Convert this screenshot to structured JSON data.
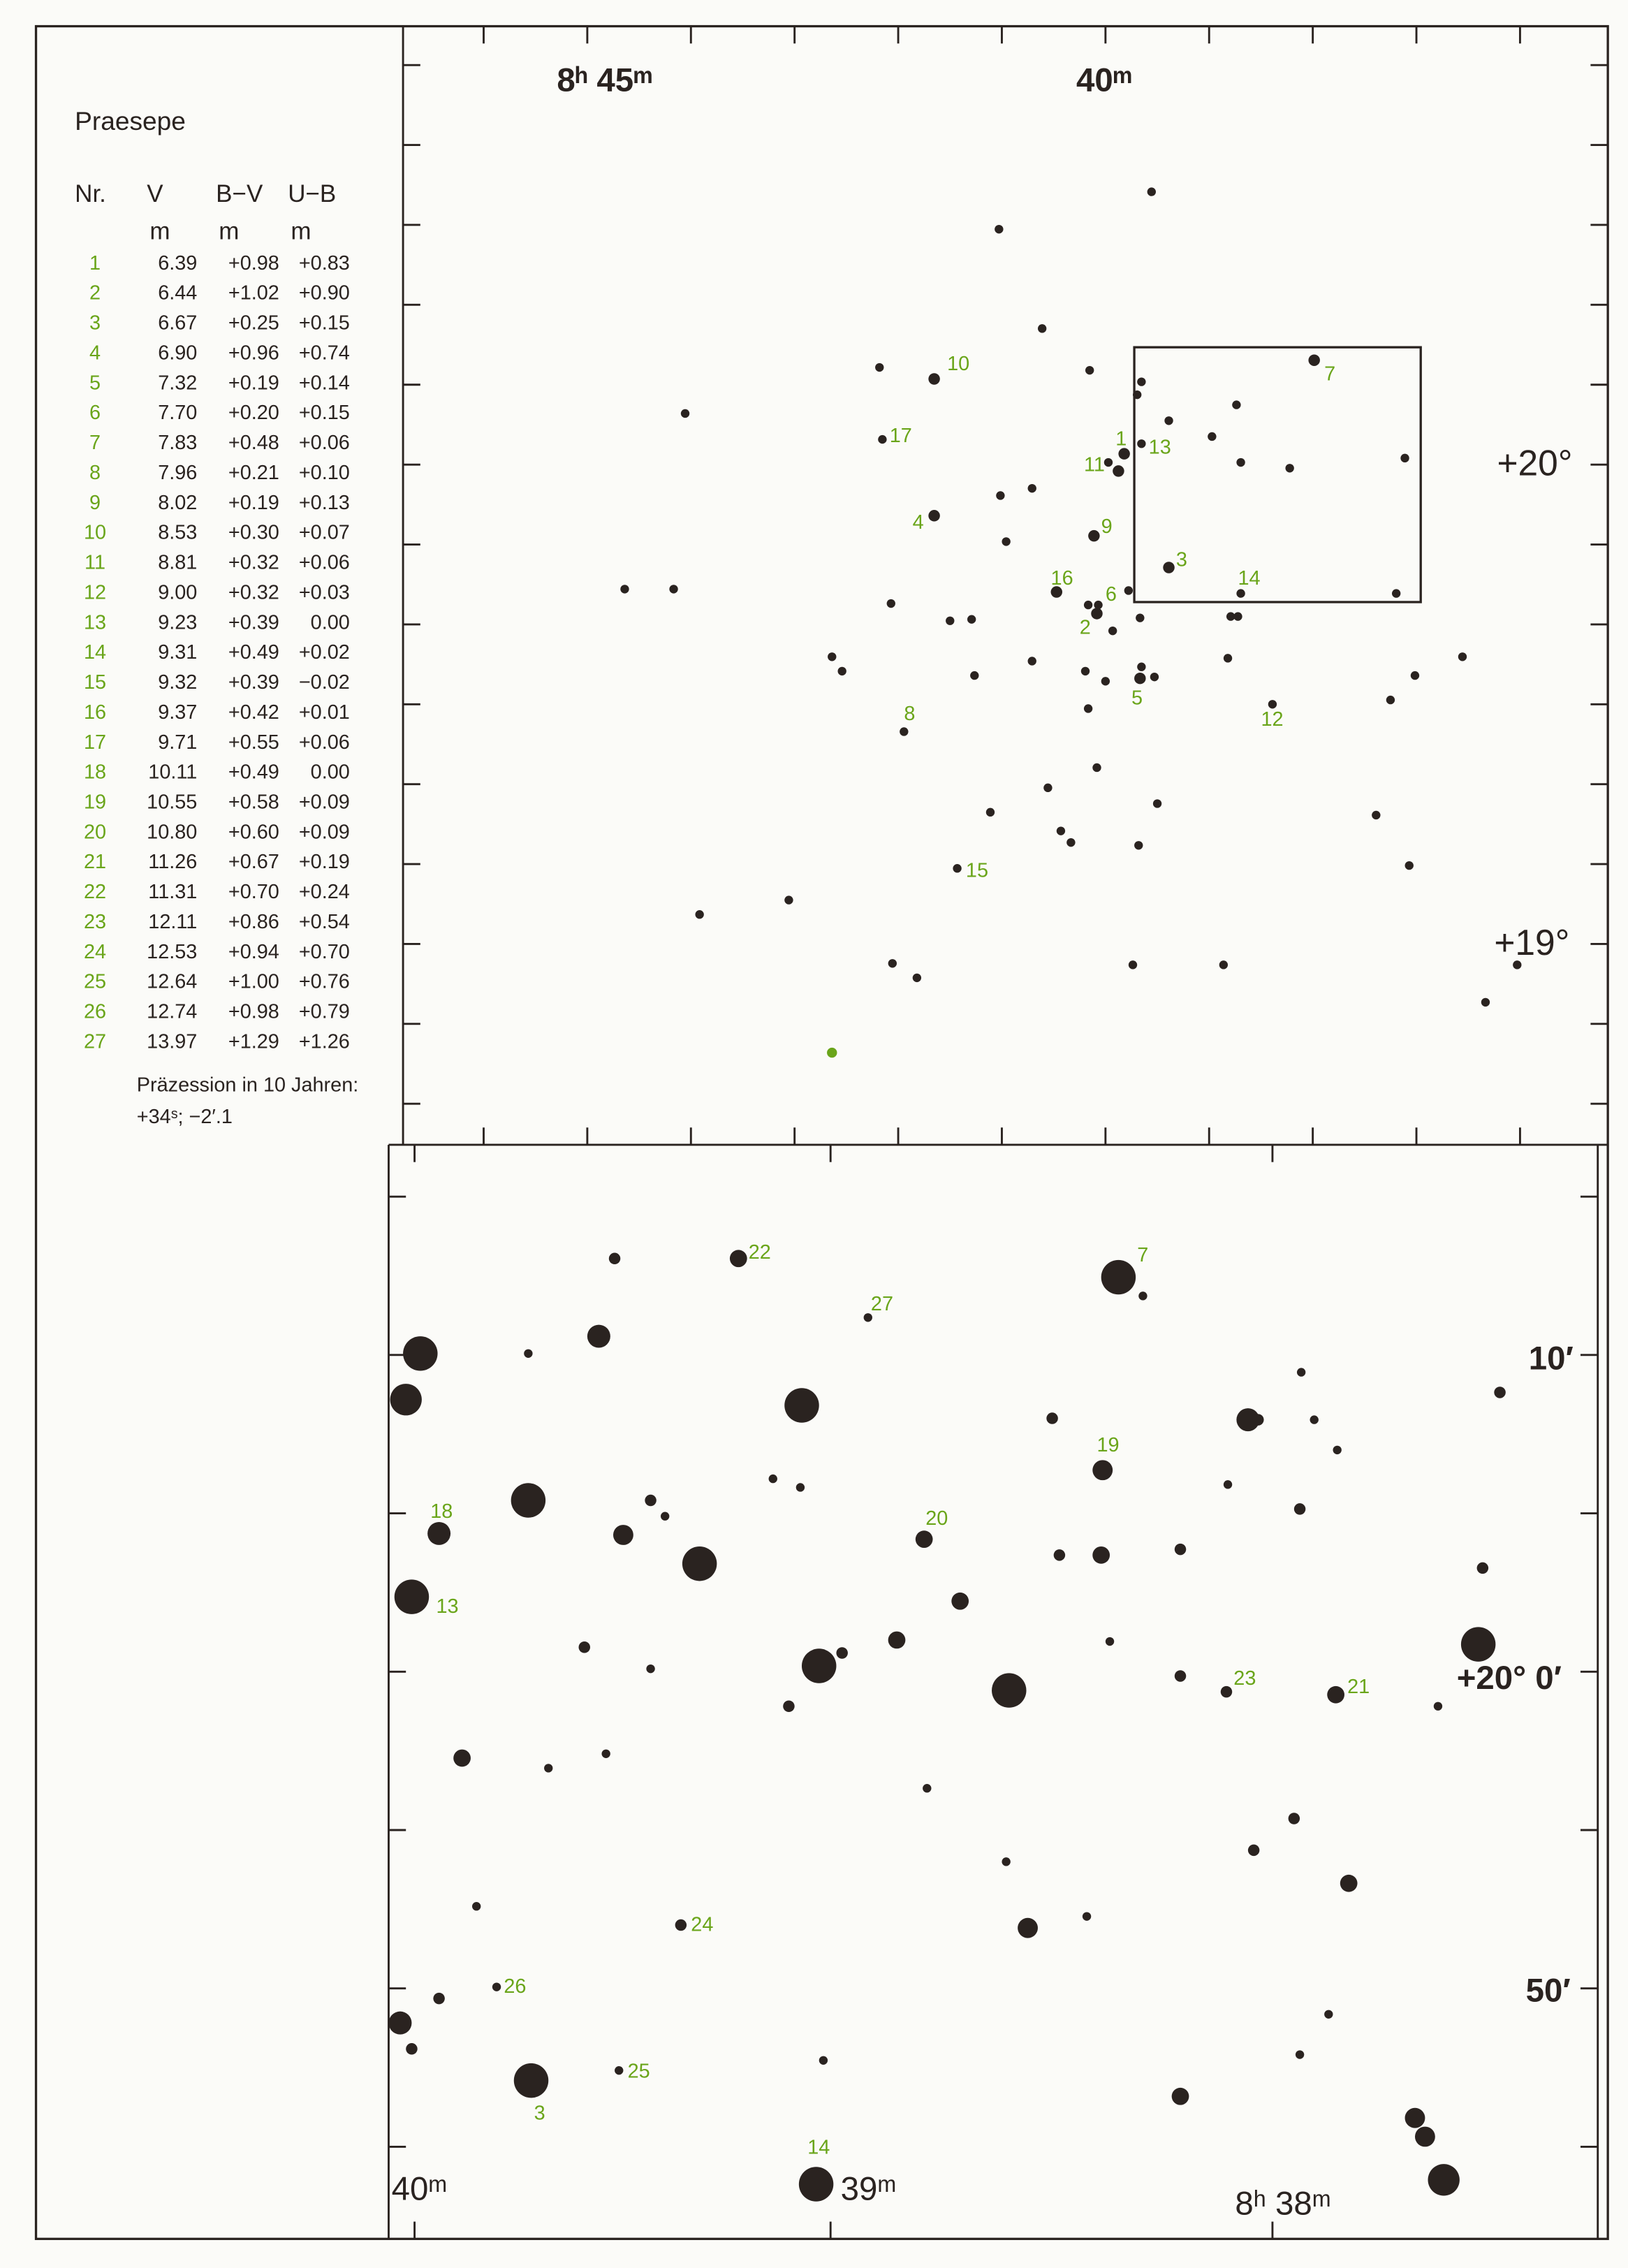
{
  "title": "Praesepe",
  "table": {
    "header": [
      "Nr.",
      "V",
      "B−V",
      "U−B"
    ],
    "units": [
      "m",
      "m",
      "m"
    ],
    "rows": [
      [
        "1",
        "6.39",
        "+0.98",
        "+0.83"
      ],
      [
        "2",
        "6.44",
        "+1.02",
        "+0.90"
      ],
      [
        "3",
        "6.67",
        "+0.25",
        "+0.15"
      ],
      [
        "4",
        "6.90",
        "+0.96",
        "+0.74"
      ],
      [
        "5",
        "7.32",
        "+0.19",
        "+0.14"
      ],
      [
        "6",
        "7.70",
        "+0.20",
        "+0.15"
      ],
      [
        "7",
        "7.83",
        "+0.48",
        "+0.06"
      ],
      [
        "8",
        "7.96",
        "+0.21",
        "+0.10"
      ],
      [
        "9",
        "8.02",
        "+0.19",
        "+0.13"
      ],
      [
        "10",
        "8.53",
        "+0.30",
        "+0.07"
      ],
      [
        "11",
        "8.81",
        "+0.32",
        "+0.06"
      ],
      [
        "12",
        "9.00",
        "+0.32",
        "+0.03"
      ],
      [
        "13",
        "9.23",
        "+0.39",
        "0.00"
      ],
      [
        "14",
        "9.31",
        "+0.49",
        "+0.02"
      ],
      [
        "15",
        "9.32",
        "+0.39",
        "−0.02"
      ],
      [
        "16",
        "9.37",
        "+0.42",
        "+0.01"
      ],
      [
        "17",
        "9.71",
        "+0.55",
        "+0.06"
      ],
      [
        "18",
        "10.11",
        "+0.49",
        "0.00"
      ],
      [
        "19",
        "10.55",
        "+0.58",
        "+0.09"
      ],
      [
        "20",
        "10.80",
        "+0.60",
        "+0.09"
      ],
      [
        "21",
        "11.26",
        "+0.67",
        "+0.19"
      ],
      [
        "22",
        "11.31",
        "+0.70",
        "+0.24"
      ],
      [
        "23",
        "12.11",
        "+0.86",
        "+0.54"
      ],
      [
        "24",
        "12.53",
        "+0.94",
        "+0.70"
      ],
      [
        "25",
        "12.64",
        "+1.00",
        "+0.76"
      ],
      [
        "26",
        "12.74",
        "+0.98",
        "+0.79"
      ],
      [
        "27",
        "13.97",
        "+1.29",
        "+1.26"
      ]
    ]
  },
  "note": [
    "Präzession in 10 Jahren:",
    "+34ˢ; −2′.1"
  ],
  "upper_map": {
    "ra_labels": [
      "8ʰ 45ᵐ",
      "40ᵐ"
    ],
    "dec_labels": [
      "+20°",
      "+19°"
    ]
  },
  "lower_map": {
    "ra_labels": [
      "40ᵐ",
      "39ᵐ",
      "8ʰ 38ᵐ"
    ],
    "dec_labels": [
      "10′",
      "+20° 0′",
      "50′"
    ]
  }
}
